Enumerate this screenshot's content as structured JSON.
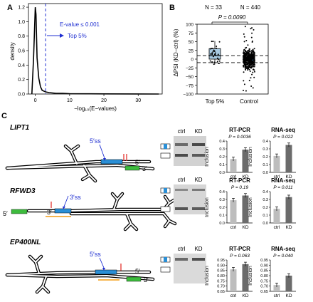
{
  "panel_a": {
    "label": "A",
    "ylabel": "density",
    "xlabel": "−log₁₀(E−values)",
    "yticks": [
      "0.0",
      "0.2",
      "0.4",
      "0.6",
      "0.8",
      "1.0",
      "1.2"
    ],
    "xticks": [
      "0",
      "10",
      "20",
      "30"
    ],
    "annotation_line1": "E-value ≤ 0.001",
    "annotation_line2": "Top 5%",
    "colors": {
      "threshold": "#1f2fd1",
      "density": "#000000"
    }
  },
  "panel_b": {
    "label": "B",
    "n_top": "N = 33",
    "n_control": "N = 440",
    "pvalue": "P = 0.0090",
    "ylabel": "ΔPSI (KD−ctrl) (%)",
    "yticks": [
      "100",
      "75",
      "50",
      "25",
      "0",
      "−25",
      "−50",
      "−75",
      "−100"
    ],
    "categories": [
      "Top 5%",
      "Control"
    ],
    "colors": {
      "top_box": "#a9cbe3",
      "control_box": "#2f6fa8"
    }
  },
  "panel_c": {
    "label": "C",
    "genes": [
      {
        "name": "LIPT1",
        "site_label": "5′ss",
        "end5": "5′",
        "end3": "3′",
        "lane_labels": [
          "ctrl",
          "KD"
        ],
        "rtpcr": {
          "title": "RT-PCR",
          "p": "P = 0.0036",
          "ylabel": "Inclusion",
          "yticks": [
            "0.4",
            "0.3",
            "0.2",
            "0.1",
            "0.0"
          ],
          "cats": [
            "ctrl",
            "KD"
          ],
          "values": [
            0.17,
            0.29
          ]
        },
        "rnaseq": {
          "title": "RNA-seq",
          "p": "P = 0.022",
          "ylabel": "Inclusion",
          "yticks": [
            "0.4",
            "0.3",
            "0.2",
            "0.1",
            "0.0"
          ],
          "cats": [
            "ctrl",
            "KD"
          ],
          "values": [
            0.21,
            0.35
          ]
        }
      },
      {
        "name": "RFWD3",
        "site_label": "3′ss",
        "end5": "5′",
        "end3": "3′",
        "lane_labels": [
          "ctrl",
          "KD"
        ],
        "rtpcr": {
          "title": "RT-PCR",
          "p": "P = 0.19",
          "ylabel": "Inclusion",
          "yticks": [
            "0.4",
            "0.3",
            "0.2",
            "0.1",
            "0.0"
          ],
          "cats": [
            "ctrl",
            "KD"
          ],
          "values": [
            0.29,
            0.35
          ]
        },
        "rnaseq": {
          "title": "RNA-seq",
          "p": "P = 0.011",
          "ylabel": "Inclusion",
          "yticks": [
            "0.4",
            "0.3",
            "0.2",
            "0.1",
            "0.0"
          ],
          "cats": [
            "ctrl",
            "KD"
          ],
          "values": [
            0.18,
            0.33
          ]
        }
      },
      {
        "name": "EP400NL",
        "site_label": "5′ss",
        "end5": "5′",
        "end3": "3′",
        "lane_labels": [
          "ctrl",
          "KD"
        ],
        "rtpcr": {
          "title": "RT-PCR",
          "p": "P = 0.063",
          "ylabel": "Inclusion",
          "yticks": [
            "0.95",
            "0.90",
            "0.85",
            "0.80",
            "0.75",
            "0.70",
            "0.65"
          ],
          "cats": [
            "ctrl",
            "KD"
          ],
          "values": [
            0.86,
            0.91
          ]
        },
        "rnaseq": {
          "title": "RNA-seq",
          "p": "P = 0.040",
          "ylabel": "Inclusion",
          "yticks": [
            "0.95",
            "0.90",
            "0.85",
            "0.80",
            "0.75",
            "0.70",
            "0.65"
          ],
          "cats": [
            "ctrl",
            "KD"
          ],
          "values": [
            0.71,
            0.8
          ]
        }
      }
    ],
    "colors": {
      "exon": "#2a8fd6",
      "flank_exon": "#3dbb3d",
      "mutation": "#e3342f",
      "underline": "#f39c12",
      "ctrl_bar": "#bdbdbd",
      "kd_bar": "#6b6b6b",
      "site_text": "#1f2fd1"
    }
  },
  "chart_data": [
    {
      "type": "line",
      "title": "",
      "xlabel": "−log₁₀(E−values)",
      "ylabel": "density",
      "xlim": [
        -2,
        37
      ],
      "ylim": [
        0,
        1.25
      ],
      "series": [
        {
          "x": [
            -1,
            -0.5,
            0,
            0.2,
            0.5,
            1,
            1.5,
            2,
            3,
            4,
            6,
            8,
            10,
            15,
            20,
            30,
            36
          ],
          "y": [
            0.0,
            0.5,
            1.2,
            1.1,
            0.5,
            0.22,
            0.1,
            0.05,
            0.03,
            0.02,
            0.01,
            0.01,
            0.005,
            0.003,
            0.002,
            0.001,
            0.0
          ]
        }
      ],
      "threshold_x": 3,
      "grid": false
    },
    {
      "type": "box",
      "categories": [
        "Top 5%",
        "Control"
      ],
      "ylabel": "ΔPSI (KD−ctrl) (%)",
      "ylim": [
        -100,
        100
      ],
      "boxes": [
        {
          "name": "Top 5%",
          "q1": 0,
          "median": 10,
          "q3": 30,
          "whisker_low": -15,
          "whisker_high": 52
        },
        {
          "name": "Control",
          "q1": -5,
          "median": 0,
          "q3": 5,
          "whisker_low": -25,
          "whisker_high": 30
        }
      ]
    },
    {
      "type": "bar",
      "title": "RT-PCR",
      "categories": [
        "ctrl",
        "KD"
      ],
      "values": [
        0.17,
        0.29
      ],
      "ylim": [
        0,
        0.4
      ]
    },
    {
      "type": "bar",
      "title": "RNA-seq",
      "categories": [
        "ctrl",
        "KD"
      ],
      "values": [
        0.21,
        0.35
      ],
      "ylim": [
        0,
        0.4
      ]
    },
    {
      "type": "bar",
      "title": "RT-PCR",
      "categories": [
        "ctrl",
        "KD"
      ],
      "values": [
        0.29,
        0.35
      ],
      "ylim": [
        0,
        0.4
      ]
    },
    {
      "type": "bar",
      "title": "RNA-seq",
      "categories": [
        "ctrl",
        "KD"
      ],
      "values": [
        0.18,
        0.33
      ],
      "ylim": [
        0,
        0.4
      ]
    },
    {
      "type": "bar",
      "title": "RT-PCR",
      "categories": [
        "ctrl",
        "KD"
      ],
      "values": [
        0.86,
        0.91
      ],
      "ylim": [
        0.65,
        0.95
      ]
    },
    {
      "type": "bar",
      "title": "RNA-seq",
      "categories": [
        "ctrl",
        "KD"
      ],
      "values": [
        0.71,
        0.8
      ],
      "ylim": [
        0.65,
        0.95
      ]
    }
  ]
}
